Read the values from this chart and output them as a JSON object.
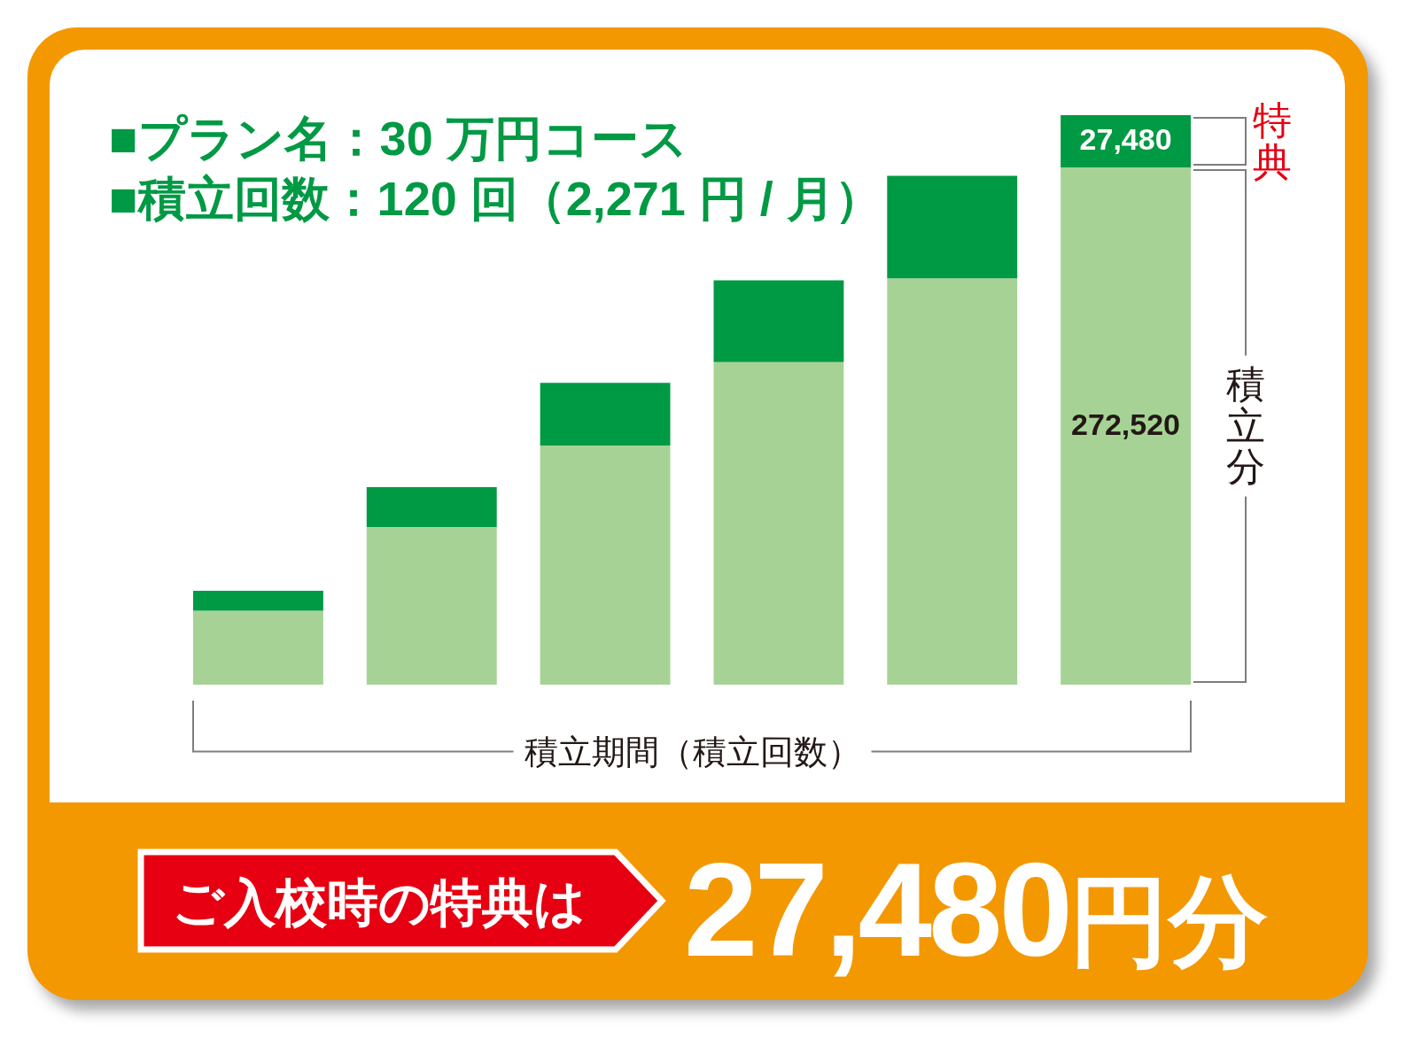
{
  "chart_data": {
    "type": "bar",
    "title": "■プラン名：30 万円コース",
    "subtitle": "■積立回数：120 回（2,271 円 / 月）",
    "xlabel": "積立期間（積立回数）",
    "categories": [
      null,
      null,
      null,
      null,
      null,
      null
    ],
    "stacked": true,
    "tick_labels": false,
    "series": [
      {
        "name": "積立分",
        "color": "#a6d395",
        "values": [
          39000,
          83000,
          126000,
          170000,
          214000,
          272520
        ],
        "value_labels": [
          null,
          null,
          null,
          null,
          null,
          "272,520"
        ]
      },
      {
        "name": "特典",
        "color": "#009944",
        "values": [
          10500,
          21000,
          33000,
          43000,
          54000,
          27480
        ],
        "value_labels": [
          null,
          null,
          null,
          null,
          null,
          "27,480"
        ]
      }
    ],
    "annotations": [
      "ご入校時の特典は",
      "27,480円分"
    ]
  }
}
